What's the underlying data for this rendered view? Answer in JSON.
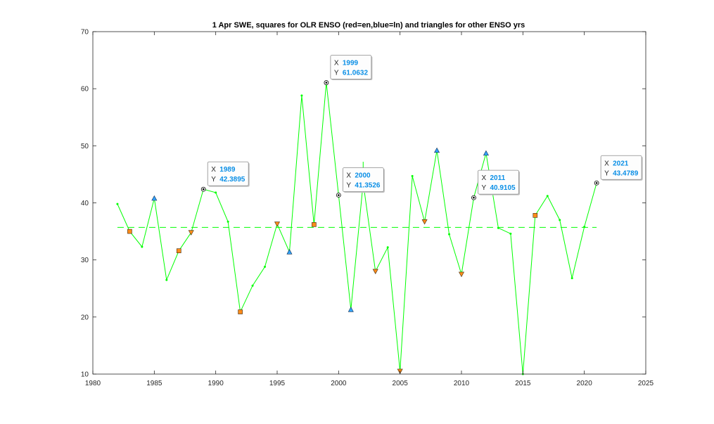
{
  "chart_data": {
    "type": "line",
    "title": "1 Apr SWE, squares for OLR ENSO (red=en,blue=ln) and triangles for other ENSO yrs",
    "xlabel": "",
    "ylabel": "",
    "xlim": [
      1980,
      2025
    ],
    "ylim": [
      10,
      70
    ],
    "xticks": [
      1980,
      1985,
      1990,
      1995,
      2000,
      2005,
      2010,
      2015,
      2020,
      2025
    ],
    "yticks": [
      10,
      20,
      30,
      40,
      50,
      60,
      70
    ],
    "grid": false,
    "legend": "none",
    "series": [
      {
        "name": "",
        "color": "#00ff00",
        "x": [
          1982,
          1983,
          1984,
          1985,
          1986,
          1987,
          1988,
          1989,
          1990,
          1991,
          1992,
          1993,
          1994,
          1995,
          1996,
          1997,
          1998,
          1999,
          2000,
          2001,
          2002,
          2003,
          2004,
          2005,
          2006,
          2007,
          2008,
          2009,
          2010,
          2011,
          2012,
          2013,
          2014,
          2015,
          2016,
          2017,
          2018,
          2019,
          2020,
          2021
        ],
        "y": [
          39.8,
          35.0,
          32.3,
          40.8,
          26.5,
          31.6,
          34.8,
          42.3895,
          41.8,
          36.7,
          20.9,
          25.5,
          28.8,
          36.3,
          31.4,
          58.8,
          36.2,
          61.0632,
          41.3526,
          21.3,
          43.5,
          28.0,
          32.2,
          10.5,
          44.7,
          36.7,
          49.2,
          34.5,
          27.5,
          40.9105,
          48.7,
          35.6,
          34.6,
          10.0,
          37.8,
          41.2,
          37.0,
          26.8,
          35.8,
          43.4789
        ]
      }
    ],
    "mean_line": {
      "y": 35.7,
      "color": "#00ff00",
      "style": "dashed"
    },
    "extra_segment": {
      "x": 2002,
      "y": [
        45.8,
        47.2
      ],
      "color": "#00ff00"
    },
    "markers": [
      {
        "x": 1983,
        "y": 35.0,
        "shape": "square",
        "color": "#ff8c1a"
      },
      {
        "x": 1987,
        "y": 31.6,
        "shape": "square",
        "color": "#ff8c1a"
      },
      {
        "x": 1992,
        "y": 20.9,
        "shape": "square",
        "color": "#ff8c1a"
      },
      {
        "x": 1998,
        "y": 36.2,
        "shape": "square",
        "color": "#ff8c1a"
      },
      {
        "x": 2016,
        "y": 37.8,
        "shape": "square",
        "color": "#ff8c1a"
      },
      {
        "x": 1988,
        "y": 34.8,
        "shape": "triangle-down",
        "color": "#ff8c1a"
      },
      {
        "x": 1995,
        "y": 36.3,
        "shape": "triangle-down",
        "color": "#ff8c1a"
      },
      {
        "x": 2003,
        "y": 28.0,
        "shape": "triangle-down",
        "color": "#ff8c1a"
      },
      {
        "x": 2005,
        "y": 10.5,
        "shape": "triangle-down",
        "color": "#ff8c1a"
      },
      {
        "x": 2007,
        "y": 36.7,
        "shape": "triangle-down",
        "color": "#ff8c1a"
      },
      {
        "x": 2010,
        "y": 27.5,
        "shape": "triangle-down",
        "color": "#ff8c1a"
      },
      {
        "x": 1985,
        "y": 40.8,
        "shape": "triangle-up",
        "color": "#33a3ff"
      },
      {
        "x": 1996,
        "y": 31.4,
        "shape": "triangle-up",
        "color": "#33a3ff"
      },
      {
        "x": 2001,
        "y": 21.3,
        "shape": "triangle-up",
        "color": "#33a3ff"
      },
      {
        "x": 2008,
        "y": 49.2,
        "shape": "triangle-up",
        "color": "#33a3ff"
      },
      {
        "x": 2012,
        "y": 48.7,
        "shape": "triangle-up",
        "color": "#33a3ff"
      }
    ],
    "datatips": [
      {
        "x": 1989,
        "y": 42.3895,
        "x_key": "X",
        "y_key": "Y",
        "x_text": "1989",
        "y_text": "42.3895"
      },
      {
        "x": 1999,
        "y": 61.0632,
        "x_key": "X",
        "y_key": "Y",
        "x_text": "1999",
        "y_text": "61.0632"
      },
      {
        "x": 2000,
        "y": 41.3526,
        "x_key": "X",
        "y_key": "Y",
        "x_text": "2000",
        "y_text": "41.3526"
      },
      {
        "x": 2011,
        "y": 40.9105,
        "x_key": "X",
        "y_key": "Y",
        "x_text": "2011",
        "y_text": "40.9105"
      },
      {
        "x": 2021,
        "y": 43.4789,
        "x_key": "X",
        "y_key": "Y",
        "x_text": "2021",
        "y_text": "43.4789"
      }
    ]
  }
}
